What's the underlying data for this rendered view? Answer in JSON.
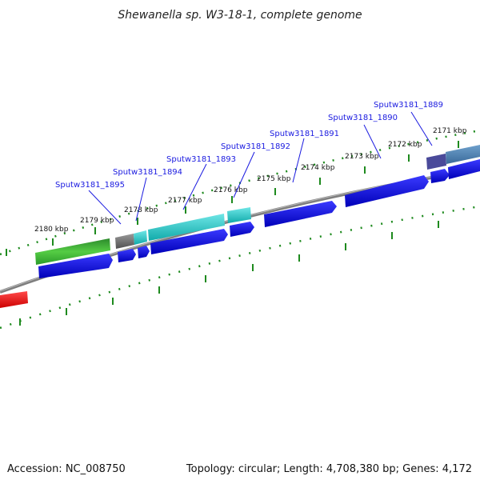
{
  "title": "Shewanella sp. W3-18-1, complete genome",
  "footer": {
    "accession": "Accession: NC_008750",
    "topology": "Topology: circular; Length: 4,708,380 bp; Genes: 4,172"
  },
  "ticks": [
    {
      "label": "2171 kbp"
    },
    {
      "label": "2172 kbp"
    },
    {
      "label": "2173 kbp"
    },
    {
      "label": "2174 kbp"
    },
    {
      "label": "2175 kbp"
    },
    {
      "label": "2176 kbp"
    },
    {
      "label": "2177 kbp"
    },
    {
      "label": "2178 kbp"
    },
    {
      "label": "2179 kbp"
    },
    {
      "label": "2180 kbp"
    }
  ],
  "gene_labels": [
    {
      "label": "Sputw3181_1889"
    },
    {
      "label": "Sputw3181_1890"
    },
    {
      "label": "Sputw3181_1891"
    },
    {
      "label": "Sputw3181_1892"
    },
    {
      "label": "Sputw3181_1893"
    },
    {
      "label": "Sputw3181_1894"
    },
    {
      "label": "Sputw3181_1895"
    }
  ],
  "colors": {
    "cds": "#1010e8",
    "tick": "#1e8a1e",
    "backbone": "#8a8a8a",
    "cyan_feature": "#1fc8c8",
    "green_feature": "#2ea82e",
    "gray_feature": "#707070",
    "steel_feature": "#4f84b8",
    "purple_feature": "#4a4a9a",
    "red_feature": "#ee1111"
  }
}
